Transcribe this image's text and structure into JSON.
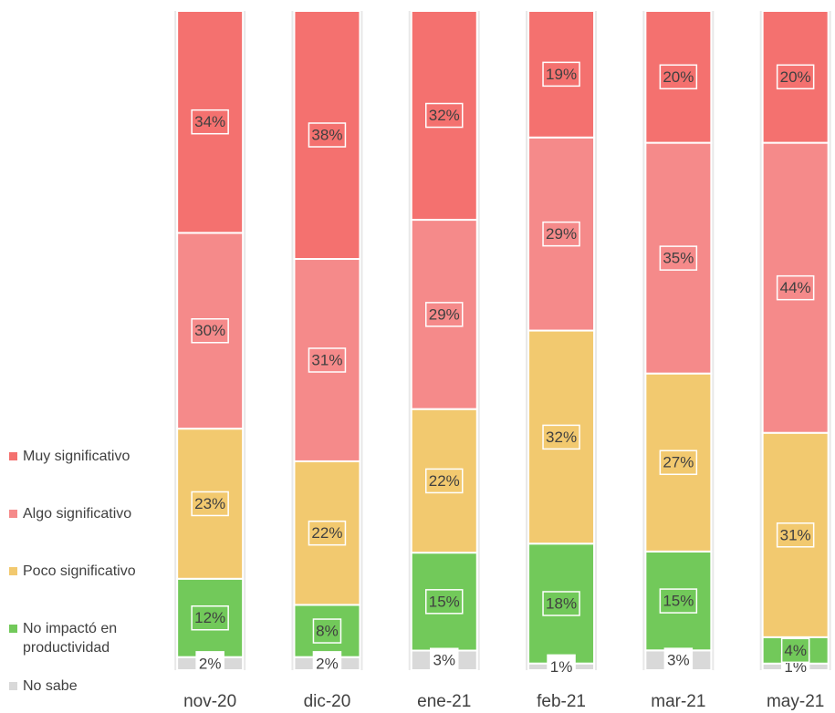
{
  "chart_data": {
    "type": "stacked_bar_100",
    "categories": [
      "nov-20",
      "dic-20",
      "ene-21",
      "feb-21",
      "mar-21",
      "may-21"
    ],
    "series": [
      {
        "name": "Muy significativo",
        "color": "#f4716f",
        "values": [
          34,
          38,
          32,
          19,
          20,
          20
        ],
        "value_labels": [
          "34%",
          "38%",
          "32%",
          "19%",
          "20%",
          "20%"
        ]
      },
      {
        "name": "Algo significativo",
        "color": "#f58a8a",
        "values": [
          30,
          31,
          29,
          29,
          35,
          44
        ],
        "value_labels": [
          "30%",
          "31%",
          "29%",
          "29%",
          "35%",
          "44%"
        ]
      },
      {
        "name": "Poco significativo",
        "color": "#f2c96f",
        "values": [
          23,
          22,
          22,
          32,
          27,
          31
        ],
        "value_labels": [
          "23%",
          "22%",
          "22%",
          "32%",
          "27%",
          "31%"
        ]
      },
      {
        "name": "No impactó en productividad",
        "color": "#72c95a",
        "values": [
          12,
          8,
          15,
          18,
          15,
          4
        ],
        "value_labels": [
          "12%",
          "8%",
          "15%",
          "18%",
          "15%",
          "4%"
        ]
      },
      {
        "name": "No sabe",
        "color": "#d9d9d9",
        "values": [
          2,
          2,
          3,
          1,
          3,
          1
        ],
        "value_labels": [
          "2%",
          "2%",
          "3%",
          "1%",
          "3%",
          "1%"
        ]
      }
    ],
    "legend": "left"
  }
}
